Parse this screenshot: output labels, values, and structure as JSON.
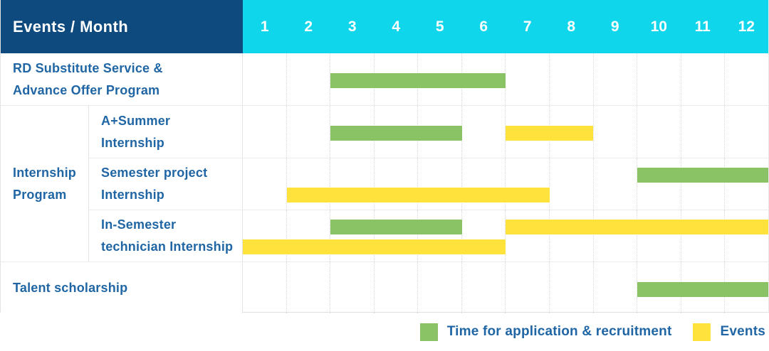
{
  "header": {
    "title": "Events / Month",
    "months": [
      "1",
      "2",
      "3",
      "4",
      "5",
      "6",
      "7",
      "8",
      "9",
      "10",
      "11",
      "12"
    ]
  },
  "colors": {
    "header_bg": "#0f4a7e",
    "month_header_bg": "#10d6ec",
    "green": "#8ac365",
    "yellow": "#ffe23c",
    "label_blue": "#2066a5"
  },
  "legend": {
    "items": [
      {
        "label": "Time for application & recruitment",
        "color": "green"
      },
      {
        "label": "Events",
        "color": "yellow"
      }
    ]
  },
  "chart_data": {
    "type": "gantt",
    "x_unit": "month",
    "x_range": [
      1,
      12
    ],
    "group_label": "Internship Program",
    "group_label_lines": [
      "Internship",
      "Program"
    ],
    "series_legend": {
      "green": "Time for application & recruitment",
      "yellow": "Events"
    },
    "rows": [
      {
        "group": "",
        "label": "RD Substitute Service & Advance Offer Program",
        "label_lines": [
          "RD Substitute Service &",
          "Advance Offer Program"
        ],
        "bars": [
          {
            "series": "Time for application & recruitment",
            "color": "green",
            "start_month": 3,
            "end_month": 6,
            "track": "single"
          }
        ]
      },
      {
        "group": "Internship Program",
        "label": "A+Summer Internship",
        "label_lines": [
          "A+Summer",
          "Internship"
        ],
        "bars": [
          {
            "series": "Time for application & recruitment",
            "color": "green",
            "start_month": 3,
            "end_month": 5,
            "track": "single"
          },
          {
            "series": "Events",
            "color": "yellow",
            "start_month": 7,
            "end_month": 8,
            "track": "single"
          }
        ]
      },
      {
        "group": "Internship Program",
        "label": "Semester project Internship",
        "label_lines": [
          "Semester project",
          "Internship"
        ],
        "bars": [
          {
            "series": "Time for application & recruitment",
            "color": "green",
            "start_month": 10,
            "end_month": 12,
            "track": "top"
          },
          {
            "series": "Events",
            "color": "yellow",
            "start_month": 2,
            "end_month": 7,
            "track": "bottom"
          }
        ]
      },
      {
        "group": "Internship Program",
        "label": "In-Semester technician Internship",
        "label_lines": [
          "In-Semester",
          "technician Internship"
        ],
        "bars": [
          {
            "series": "Time for application & recruitment",
            "color": "green",
            "start_month": 3,
            "end_month": 5,
            "track": "top"
          },
          {
            "series": "Events",
            "color": "yellow",
            "start_month": 7,
            "end_month": 12,
            "track": "top"
          },
          {
            "series": "Events",
            "color": "yellow",
            "start_month": 1,
            "end_month": 6,
            "track": "bottom"
          }
        ]
      },
      {
        "group": "",
        "label": "Talent scholarship",
        "label_lines": [
          "Talent scholarship"
        ],
        "bars": [
          {
            "series": "Time for application & recruitment",
            "color": "green",
            "start_month": 10,
            "end_month": 12,
            "track": "single"
          }
        ]
      }
    ]
  }
}
